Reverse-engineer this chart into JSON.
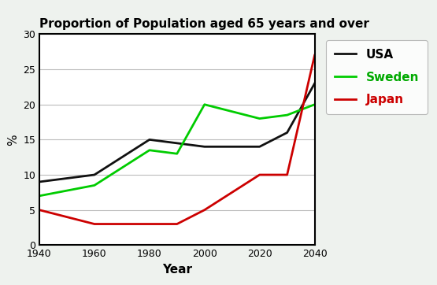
{
  "title": "Proportion of Population aged 65 years and over",
  "xlabel": "Year",
  "ylabel": "%",
  "xlim": [
    1940,
    2040
  ],
  "ylim": [
    0,
    30
  ],
  "xticks": [
    1940,
    1960,
    1980,
    2000,
    2020,
    2040
  ],
  "yticks": [
    0,
    5,
    10,
    15,
    20,
    25,
    30
  ],
  "usa": {
    "x": [
      1940,
      1960,
      1980,
      1990,
      2000,
      2020,
      2030,
      2040
    ],
    "y": [
      9,
      10,
      15,
      14.5,
      14,
      14,
      16,
      23
    ],
    "color": "#111111",
    "label": "USA",
    "linewidth": 2.0
  },
  "sweden": {
    "x": [
      1940,
      1960,
      1980,
      1990,
      2000,
      2020,
      2030,
      2040
    ],
    "y": [
      7,
      8.5,
      13.5,
      13,
      20,
      18,
      18.5,
      20
    ],
    "color": "#00cc00",
    "label": "Sweden",
    "linewidth": 2.0
  },
  "japan": {
    "x": [
      1940,
      1960,
      1980,
      1990,
      2000,
      2020,
      2030,
      2040
    ],
    "y": [
      5,
      3,
      3,
      3,
      5,
      10,
      10,
      27
    ],
    "color": "#cc0000",
    "label": "Japan",
    "linewidth": 2.0
  },
  "background": "#eef2ee",
  "plot_bg": "#ffffff",
  "title_color": "#000000",
  "legend_label_colors": [
    "#111111",
    "#00cc00",
    "#cc0000"
  ],
  "legend_text_colors": [
    "#000000",
    "#00aa00",
    "#cc0000"
  ]
}
